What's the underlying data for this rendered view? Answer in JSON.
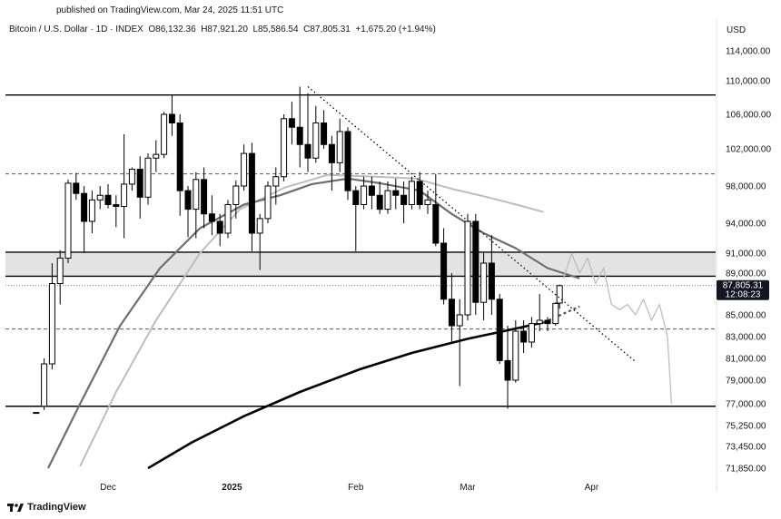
{
  "header": {
    "published": "published on TradingView.com, Mar 24, 2025 11:51 UTC",
    "symbol": "Bitcoin / U.S. Dollar · 1D · INDEX",
    "open": "O86,132.36",
    "high": "H87,921.20",
    "low": "L85,586.54",
    "close": "C87,805.31",
    "change": "+1,675.20 (+1.94%)"
  },
  "currency": "USD",
  "price_tag": {
    "value": "87,805.31",
    "countdown": "12:08:23"
  },
  "brand": "TradingView",
  "colors": {
    "candle": "#000000",
    "ma_light": "#bdbdbd",
    "ma_mid": "#6e6e6e",
    "ma_dark": "#000000",
    "zone": "#e3e3e3"
  },
  "chart_data": {
    "type": "candlestick",
    "symbol": "Bitcoin / U.S. Dollar",
    "interval": "1D",
    "y_ticks": [
      "114,000.00",
      "110,000.00",
      "106,000.00",
      "102,000.00",
      "98,000.00",
      "94,000.00",
      "91,000.00",
      "89,000.00",
      "85,000.00",
      "83,000.00",
      "81,000.00",
      "79,000.00",
      "77,000.00",
      "75,250.00",
      "73,450.00",
      "71,850.00"
    ],
    "x_ticks": [
      {
        "label": "Dec",
        "bold": false
      },
      {
        "label": "2025",
        "bold": true
      },
      {
        "label": "Feb",
        "bold": false
      },
      {
        "label": "Mar",
        "bold": false
      },
      {
        "label": "Apr",
        "bold": false
      }
    ],
    "horizontal_levels": [
      {
        "price": 108300,
        "style": "solid"
      },
      {
        "price": 99300,
        "style": "dashed"
      },
      {
        "price": 91100,
        "style": "solid"
      },
      {
        "price": 88700,
        "style": "solid"
      },
      {
        "price": 83700,
        "style": "dashed"
      },
      {
        "price": 76800,
        "style": "solid"
      }
    ],
    "shaded_zone": [
      88700,
      91100
    ],
    "trendline": {
      "from": {
        "date": "2025-01-20",
        "price": 109300
      },
      "to": {
        "date": "2025-04-12",
        "price": 80700
      },
      "style": "dotted"
    },
    "series": [
      {
        "name": "",
        "type": "ohlc",
        "points": [
          [
            "2024-11-13",
            76300,
            76300,
            76300,
            76300
          ],
          [
            "2024-11-15",
            76800,
            81000,
            76500,
            80500
          ],
          [
            "2024-11-17",
            80500,
            90000,
            80000,
            88000
          ],
          [
            "2024-11-19",
            88000,
            91300,
            86000,
            90500
          ],
          [
            "2024-11-21",
            90500,
            98700,
            90000,
            98300
          ],
          [
            "2024-11-23",
            98300,
            99400,
            96500,
            97200
          ],
          [
            "2024-11-25",
            97200,
            98000,
            91000,
            94200
          ],
          [
            "2024-11-27",
            94200,
            97500,
            93000,
            96500
          ],
          [
            "2024-11-29",
            96500,
            98000,
            95500,
            97000
          ],
          [
            "2024-12-01",
            97000,
            98200,
            95600,
            96000
          ],
          [
            "2024-12-03",
            96000,
            97000,
            93600,
            95800
          ],
          [
            "2024-12-05",
            95800,
            103700,
            92500,
            98200
          ],
          [
            "2024-12-07",
            98200,
            100000,
            97500,
            99800
          ],
          [
            "2024-12-09",
            99800,
            101200,
            94500,
            96800
          ],
          [
            "2024-12-11",
            96800,
            101500,
            96000,
            101000
          ],
          [
            "2024-12-13",
            101000,
            103000,
            99500,
            101400
          ],
          [
            "2024-12-15",
            101400,
            106300,
            101000,
            106000
          ],
          [
            "2024-12-17",
            106000,
            108300,
            103500,
            105000
          ],
          [
            "2024-12-19",
            105000,
            106000,
            94800,
            97500
          ],
          [
            "2024-12-21",
            97500,
            98000,
            92600,
            95500
          ],
          [
            "2024-12-23",
            95500,
            99500,
            92500,
            98700
          ],
          [
            "2024-12-25",
            98700,
            100000,
            93500,
            95000
          ],
          [
            "2024-12-27",
            95000,
            97000,
            92800,
            94200
          ],
          [
            "2024-12-29",
            94200,
            95000,
            91700,
            93000
          ],
          [
            "2024-12-31",
            93000,
            96500,
            92500,
            96000
          ],
          [
            "2025-01-02",
            96000,
            98600,
            94500,
            98000
          ],
          [
            "2025-01-04",
            98000,
            102500,
            97500,
            101500
          ],
          [
            "2025-01-06",
            101500,
            102700,
            91200,
            93000
          ],
          [
            "2025-01-08",
            93000,
            95000,
            89300,
            94500
          ],
          [
            "2025-01-10",
            94500,
            98500,
            94000,
            98000
          ],
          [
            "2025-01-12",
            98000,
            100000,
            96000,
            99000
          ],
          [
            "2025-01-14",
            99000,
            106000,
            98500,
            105500
          ],
          [
            "2025-01-16",
            105500,
            107500,
            102500,
            104500
          ],
          [
            "2025-01-18",
            104500,
            109300,
            100000,
            102500
          ],
          [
            "2025-01-20",
            102500,
            108500,
            99500,
            101000
          ],
          [
            "2025-01-22",
            101000,
            107000,
            100500,
            105000
          ],
          [
            "2025-01-24",
            105000,
            106500,
            102000,
            102500
          ],
          [
            "2025-01-26",
            102500,
            103500,
            97500,
            100500
          ],
          [
            "2025-01-28",
            100500,
            105500,
            99500,
            104000
          ],
          [
            "2025-01-30",
            104000,
            104500,
            96500,
            97500
          ],
          [
            "2025-02-01",
            97500,
            98000,
            91200,
            96000
          ],
          [
            "2025-02-03",
            96000,
            99000,
            95500,
            98000
          ],
          [
            "2025-02-05",
            98000,
            99000,
            95500,
            97000
          ],
          [
            "2025-02-07",
            97000,
            98500,
            95000,
            95500
          ],
          [
            "2025-02-09",
            95500,
            98500,
            95000,
            97500
          ],
          [
            "2025-02-11",
            97500,
            98800,
            95500,
            97000
          ],
          [
            "2025-02-13",
            97000,
            98500,
            94000,
            96000
          ],
          [
            "2025-02-15",
            96000,
            99000,
            95500,
            98500
          ],
          [
            "2025-02-17",
            98500,
            99500,
            95500,
            96000
          ],
          [
            "2025-02-19",
            96000,
            97500,
            95000,
            96500
          ],
          [
            "2025-02-21",
            96000,
            99300,
            91700,
            92000
          ],
          [
            "2025-02-23",
            92000,
            93500,
            86000,
            86500
          ],
          [
            "2025-02-25",
            86500,
            89000,
            82500,
            84000
          ],
          [
            "2025-02-27",
            84000,
            86500,
            78500,
            85000
          ],
          [
            "2025-03-01",
            85000,
            95000,
            84500,
            94200
          ],
          [
            "2025-03-03",
            94200,
            95000,
            85000,
            86200
          ],
          [
            "2025-03-05",
            86200,
            91000,
            84500,
            90000
          ],
          [
            "2025-03-07",
            90000,
            92800,
            85000,
            86500
          ],
          [
            "2025-03-09",
            86500,
            87000,
            80500,
            80800
          ],
          [
            "2025-03-11",
            80800,
            84000,
            76600,
            79000
          ],
          [
            "2025-03-13",
            79000,
            84500,
            78800,
            83500
          ],
          [
            "2025-03-15",
            83500,
            84500,
            81500,
            82500
          ],
          [
            "2025-03-17",
            82500,
            84800,
            82000,
            84200
          ],
          [
            "2025-03-19",
            84200,
            87000,
            83500,
            84500
          ],
          [
            "2025-03-21",
            84500,
            84800,
            83500,
            84200
          ],
          [
            "2025-03-23",
            84200,
            86200,
            84000,
            86100
          ],
          [
            "2025-03-24",
            86132,
            87921,
            85586,
            87805
          ]
        ]
      },
      {
        "name": "",
        "type": "line",
        "points": [
          [
            "2024-11-24",
            72000
          ],
          [
            "2024-12-03",
            78000
          ],
          [
            "2024-12-13",
            84500
          ],
          [
            "2024-12-24",
            91000
          ],
          [
            "2025-01-03",
            95500
          ],
          [
            "2025-01-14",
            97800
          ],
          [
            "2025-01-25",
            99200
          ],
          [
            "2025-02-06",
            99000
          ],
          [
            "2025-02-16",
            98800
          ],
          [
            "2025-02-25",
            97700
          ],
          [
            "2025-03-06",
            96800
          ],
          [
            "2025-03-15",
            95800
          ],
          [
            "2025-03-20",
            95200
          ]
        ]
      },
      {
        "name": "",
        "type": "line",
        "points": [
          [
            "2024-11-16",
            71850
          ],
          [
            "2024-11-24",
            77000
          ],
          [
            "2024-12-04",
            84000
          ],
          [
            "2024-12-14",
            89500
          ],
          [
            "2024-12-24",
            93500
          ],
          [
            "2025-01-04",
            96000
          ],
          [
            "2025-01-13",
            97000
          ],
          [
            "2025-01-21",
            98200
          ],
          [
            "2025-01-30",
            98800
          ],
          [
            "2025-02-07",
            98300
          ],
          [
            "2025-02-17",
            97500
          ],
          [
            "2025-02-25",
            95000
          ],
          [
            "2025-03-05",
            93000
          ],
          [
            "2025-03-13",
            91500
          ],
          [
            "2025-03-21",
            89500
          ],
          [
            "2025-03-29",
            88500
          ]
        ]
      },
      {
        "name": "",
        "type": "line",
        "points": [
          [
            "2024-12-11",
            71850
          ],
          [
            "2024-12-22",
            73800
          ],
          [
            "2025-01-04",
            76000
          ],
          [
            "2025-01-18",
            78000
          ],
          [
            "2025-02-02",
            80000
          ],
          [
            "2025-02-15",
            81500
          ],
          [
            "2025-03-01",
            82800
          ],
          [
            "2025-03-10",
            83500
          ],
          [
            "2025-03-20",
            84300
          ]
        ]
      },
      {
        "name": "",
        "type": "line",
        "style": "dashed",
        "points": [
          [
            "2025-03-20",
            84300
          ],
          [
            "2025-03-29",
            85800
          ]
        ]
      },
      {
        "name": "",
        "type": "line",
        "points": [
          [
            "2025-03-25",
            88500
          ],
          [
            "2025-03-27",
            91000
          ],
          [
            "2025-03-29",
            89000
          ],
          [
            "2025-03-31",
            90500
          ],
          [
            "2025-04-02",
            88000
          ],
          [
            "2025-04-04",
            89500
          ],
          [
            "2025-04-06",
            86000
          ],
          [
            "2025-04-08",
            85500
          ],
          [
            "2025-04-10",
            86000
          ],
          [
            "2025-04-12",
            85000
          ],
          [
            "2025-04-14",
            86500
          ],
          [
            "2025-04-16",
            84500
          ],
          [
            "2025-04-18",
            86000
          ],
          [
            "2025-04-20",
            83000
          ],
          [
            "2025-04-21",
            77000
          ]
        ]
      }
    ]
  }
}
